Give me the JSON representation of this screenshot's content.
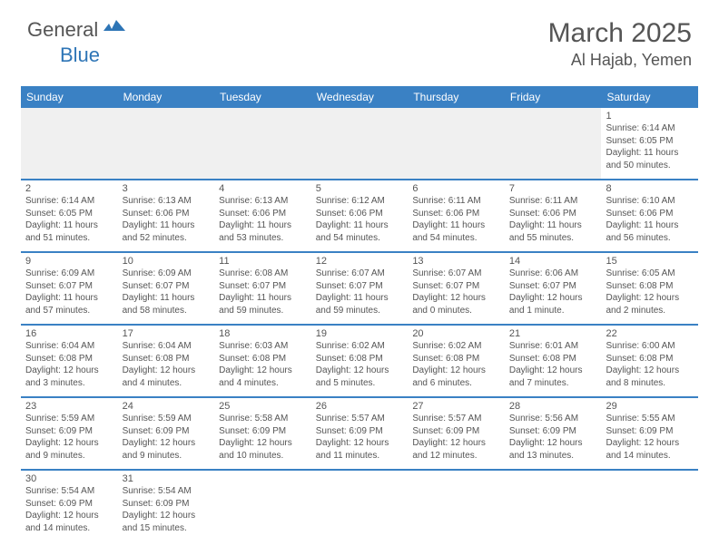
{
  "logo": {
    "main": "General",
    "sub": "Blue"
  },
  "title": "March 2025",
  "location": "Al Hajab, Yemen",
  "header_bg": "#3a81c4",
  "border_color": "#3a81c4",
  "empty_bg": "#f0f0f0",
  "text_color": "#555555",
  "weekdays": [
    "Sunday",
    "Monday",
    "Tuesday",
    "Wednesday",
    "Thursday",
    "Friday",
    "Saturday"
  ],
  "weeks": [
    [
      {
        "empty": true
      },
      {
        "empty": true
      },
      {
        "empty": true
      },
      {
        "empty": true
      },
      {
        "empty": true
      },
      {
        "empty": true
      },
      {
        "day": "1",
        "sunrise": "Sunrise: 6:14 AM",
        "sunset": "Sunset: 6:05 PM",
        "daylight": "Daylight: 11 hours and 50 minutes."
      }
    ],
    [
      {
        "day": "2",
        "sunrise": "Sunrise: 6:14 AM",
        "sunset": "Sunset: 6:05 PM",
        "daylight": "Daylight: 11 hours and 51 minutes."
      },
      {
        "day": "3",
        "sunrise": "Sunrise: 6:13 AM",
        "sunset": "Sunset: 6:06 PM",
        "daylight": "Daylight: 11 hours and 52 minutes."
      },
      {
        "day": "4",
        "sunrise": "Sunrise: 6:13 AM",
        "sunset": "Sunset: 6:06 PM",
        "daylight": "Daylight: 11 hours and 53 minutes."
      },
      {
        "day": "5",
        "sunrise": "Sunrise: 6:12 AM",
        "sunset": "Sunset: 6:06 PM",
        "daylight": "Daylight: 11 hours and 54 minutes."
      },
      {
        "day": "6",
        "sunrise": "Sunrise: 6:11 AM",
        "sunset": "Sunset: 6:06 PM",
        "daylight": "Daylight: 11 hours and 54 minutes."
      },
      {
        "day": "7",
        "sunrise": "Sunrise: 6:11 AM",
        "sunset": "Sunset: 6:06 PM",
        "daylight": "Daylight: 11 hours and 55 minutes."
      },
      {
        "day": "8",
        "sunrise": "Sunrise: 6:10 AM",
        "sunset": "Sunset: 6:06 PM",
        "daylight": "Daylight: 11 hours and 56 minutes."
      }
    ],
    [
      {
        "day": "9",
        "sunrise": "Sunrise: 6:09 AM",
        "sunset": "Sunset: 6:07 PM",
        "daylight": "Daylight: 11 hours and 57 minutes."
      },
      {
        "day": "10",
        "sunrise": "Sunrise: 6:09 AM",
        "sunset": "Sunset: 6:07 PM",
        "daylight": "Daylight: 11 hours and 58 minutes."
      },
      {
        "day": "11",
        "sunrise": "Sunrise: 6:08 AM",
        "sunset": "Sunset: 6:07 PM",
        "daylight": "Daylight: 11 hours and 59 minutes."
      },
      {
        "day": "12",
        "sunrise": "Sunrise: 6:07 AM",
        "sunset": "Sunset: 6:07 PM",
        "daylight": "Daylight: 11 hours and 59 minutes."
      },
      {
        "day": "13",
        "sunrise": "Sunrise: 6:07 AM",
        "sunset": "Sunset: 6:07 PM",
        "daylight": "Daylight: 12 hours and 0 minutes."
      },
      {
        "day": "14",
        "sunrise": "Sunrise: 6:06 AM",
        "sunset": "Sunset: 6:07 PM",
        "daylight": "Daylight: 12 hours and 1 minute."
      },
      {
        "day": "15",
        "sunrise": "Sunrise: 6:05 AM",
        "sunset": "Sunset: 6:08 PM",
        "daylight": "Daylight: 12 hours and 2 minutes."
      }
    ],
    [
      {
        "day": "16",
        "sunrise": "Sunrise: 6:04 AM",
        "sunset": "Sunset: 6:08 PM",
        "daylight": "Daylight: 12 hours and 3 minutes."
      },
      {
        "day": "17",
        "sunrise": "Sunrise: 6:04 AM",
        "sunset": "Sunset: 6:08 PM",
        "daylight": "Daylight: 12 hours and 4 minutes."
      },
      {
        "day": "18",
        "sunrise": "Sunrise: 6:03 AM",
        "sunset": "Sunset: 6:08 PM",
        "daylight": "Daylight: 12 hours and 4 minutes."
      },
      {
        "day": "19",
        "sunrise": "Sunrise: 6:02 AM",
        "sunset": "Sunset: 6:08 PM",
        "daylight": "Daylight: 12 hours and 5 minutes."
      },
      {
        "day": "20",
        "sunrise": "Sunrise: 6:02 AM",
        "sunset": "Sunset: 6:08 PM",
        "daylight": "Daylight: 12 hours and 6 minutes."
      },
      {
        "day": "21",
        "sunrise": "Sunrise: 6:01 AM",
        "sunset": "Sunset: 6:08 PM",
        "daylight": "Daylight: 12 hours and 7 minutes."
      },
      {
        "day": "22",
        "sunrise": "Sunrise: 6:00 AM",
        "sunset": "Sunset: 6:08 PM",
        "daylight": "Daylight: 12 hours and 8 minutes."
      }
    ],
    [
      {
        "day": "23",
        "sunrise": "Sunrise: 5:59 AM",
        "sunset": "Sunset: 6:09 PM",
        "daylight": "Daylight: 12 hours and 9 minutes."
      },
      {
        "day": "24",
        "sunrise": "Sunrise: 5:59 AM",
        "sunset": "Sunset: 6:09 PM",
        "daylight": "Daylight: 12 hours and 9 minutes."
      },
      {
        "day": "25",
        "sunrise": "Sunrise: 5:58 AM",
        "sunset": "Sunset: 6:09 PM",
        "daylight": "Daylight: 12 hours and 10 minutes."
      },
      {
        "day": "26",
        "sunrise": "Sunrise: 5:57 AM",
        "sunset": "Sunset: 6:09 PM",
        "daylight": "Daylight: 12 hours and 11 minutes."
      },
      {
        "day": "27",
        "sunrise": "Sunrise: 5:57 AM",
        "sunset": "Sunset: 6:09 PM",
        "daylight": "Daylight: 12 hours and 12 minutes."
      },
      {
        "day": "28",
        "sunrise": "Sunrise: 5:56 AM",
        "sunset": "Sunset: 6:09 PM",
        "daylight": "Daylight: 12 hours and 13 minutes."
      },
      {
        "day": "29",
        "sunrise": "Sunrise: 5:55 AM",
        "sunset": "Sunset: 6:09 PM",
        "daylight": "Daylight: 12 hours and 14 minutes."
      }
    ],
    [
      {
        "day": "30",
        "sunrise": "Sunrise: 5:54 AM",
        "sunset": "Sunset: 6:09 PM",
        "daylight": "Daylight: 12 hours and 14 minutes."
      },
      {
        "day": "31",
        "sunrise": "Sunrise: 5:54 AM",
        "sunset": "Sunset: 6:09 PM",
        "daylight": "Daylight: 12 hours and 15 minutes."
      },
      {
        "empty": true,
        "white": true
      },
      {
        "empty": true,
        "white": true
      },
      {
        "empty": true,
        "white": true
      },
      {
        "empty": true,
        "white": true
      },
      {
        "empty": true,
        "white": true
      }
    ]
  ]
}
